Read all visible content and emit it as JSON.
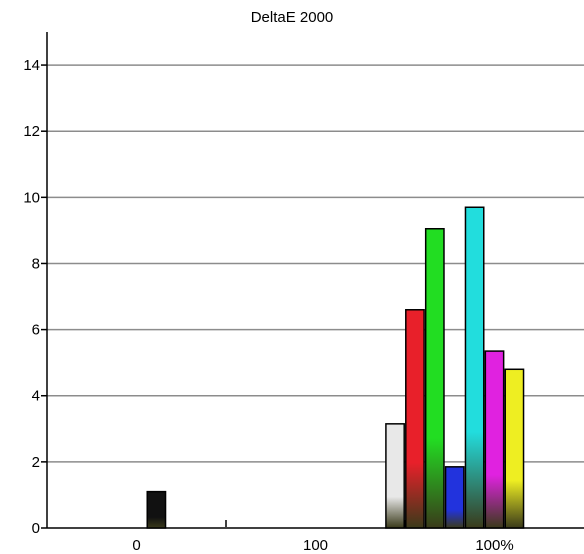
{
  "chart_data": {
    "type": "bar",
    "title": "DeltaE 2000",
    "xlabel": "",
    "ylabel": "",
    "ylim": [
      0,
      15
    ],
    "y_ticks": [
      0,
      2,
      4,
      6,
      8,
      10,
      12,
      14
    ],
    "grid": "horizontal",
    "x_group_labels": [
      "0",
      "100",
      "100%"
    ],
    "bars": [
      {
        "group": "0",
        "slot": 5,
        "value": 1.1,
        "color": "#111111"
      },
      {
        "group": "100",
        "slot": 8,
        "value": 3.15,
        "color": "#e8e8e8"
      },
      {
        "group": "100%",
        "slot": 0,
        "value": 6.6,
        "color": "#e8202a"
      },
      {
        "group": "100%",
        "slot": 1,
        "value": 9.05,
        "color": "#22dd22"
      },
      {
        "group": "100%",
        "slot": 2,
        "value": 1.85,
        "color": "#2233dd"
      },
      {
        "group": "100%",
        "slot": 3,
        "value": 9.7,
        "color": "#22dddd"
      },
      {
        "group": "100%",
        "slot": 4,
        "value": 5.35,
        "color": "#e022e0"
      },
      {
        "group": "100%",
        "slot": 5,
        "value": 4.8,
        "color": "#eeee22"
      }
    ]
  }
}
